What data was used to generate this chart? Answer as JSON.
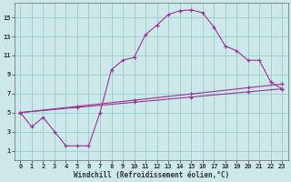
{
  "xlabel": "Windchill (Refroidissement éolien,°C)",
  "bg_color": "#cce8e8",
  "grid_color": "#99cccc",
  "line_color": "#993399",
  "xlim": [
    -0.5,
    23.5
  ],
  "ylim": [
    0,
    16.5
  ],
  "xticks": [
    0,
    1,
    2,
    3,
    4,
    5,
    6,
    7,
    8,
    9,
    10,
    11,
    12,
    13,
    14,
    15,
    16,
    17,
    18,
    19,
    20,
    21,
    22,
    23
  ],
  "yticks": [
    1,
    3,
    5,
    7,
    9,
    11,
    13,
    15
  ],
  "curve1_x": [
    0,
    1,
    2,
    3,
    4,
    5,
    6,
    7,
    8,
    9,
    10,
    11,
    12,
    13,
    14,
    15,
    16,
    17,
    18,
    19,
    20,
    21,
    22,
    23
  ],
  "curve1_y": [
    5,
    3.5,
    4.5,
    3.0,
    1.5,
    1.5,
    1.5,
    5.0,
    9.5,
    10.5,
    10.8,
    13.2,
    14.2,
    15.3,
    15.7,
    15.8,
    15.5,
    14.0,
    12.0,
    11.5,
    10.5,
    10.5,
    8.2,
    7.5
  ],
  "curve2_x": [
    0,
    23
  ],
  "curve2_y": [
    5,
    7.5
  ],
  "curve3_x": [
    0,
    23
  ],
  "curve3_y": [
    5,
    8.0
  ],
  "marker_x2": [
    0,
    5,
    10,
    15,
    20,
    23
  ],
  "marker_y2": [
    5,
    5.54,
    6.09,
    6.63,
    7.17,
    7.5
  ],
  "marker_x3": [
    0,
    5,
    10,
    15,
    20,
    23
  ],
  "marker_y3": [
    5,
    5.65,
    6.3,
    6.96,
    7.61,
    8.0
  ]
}
